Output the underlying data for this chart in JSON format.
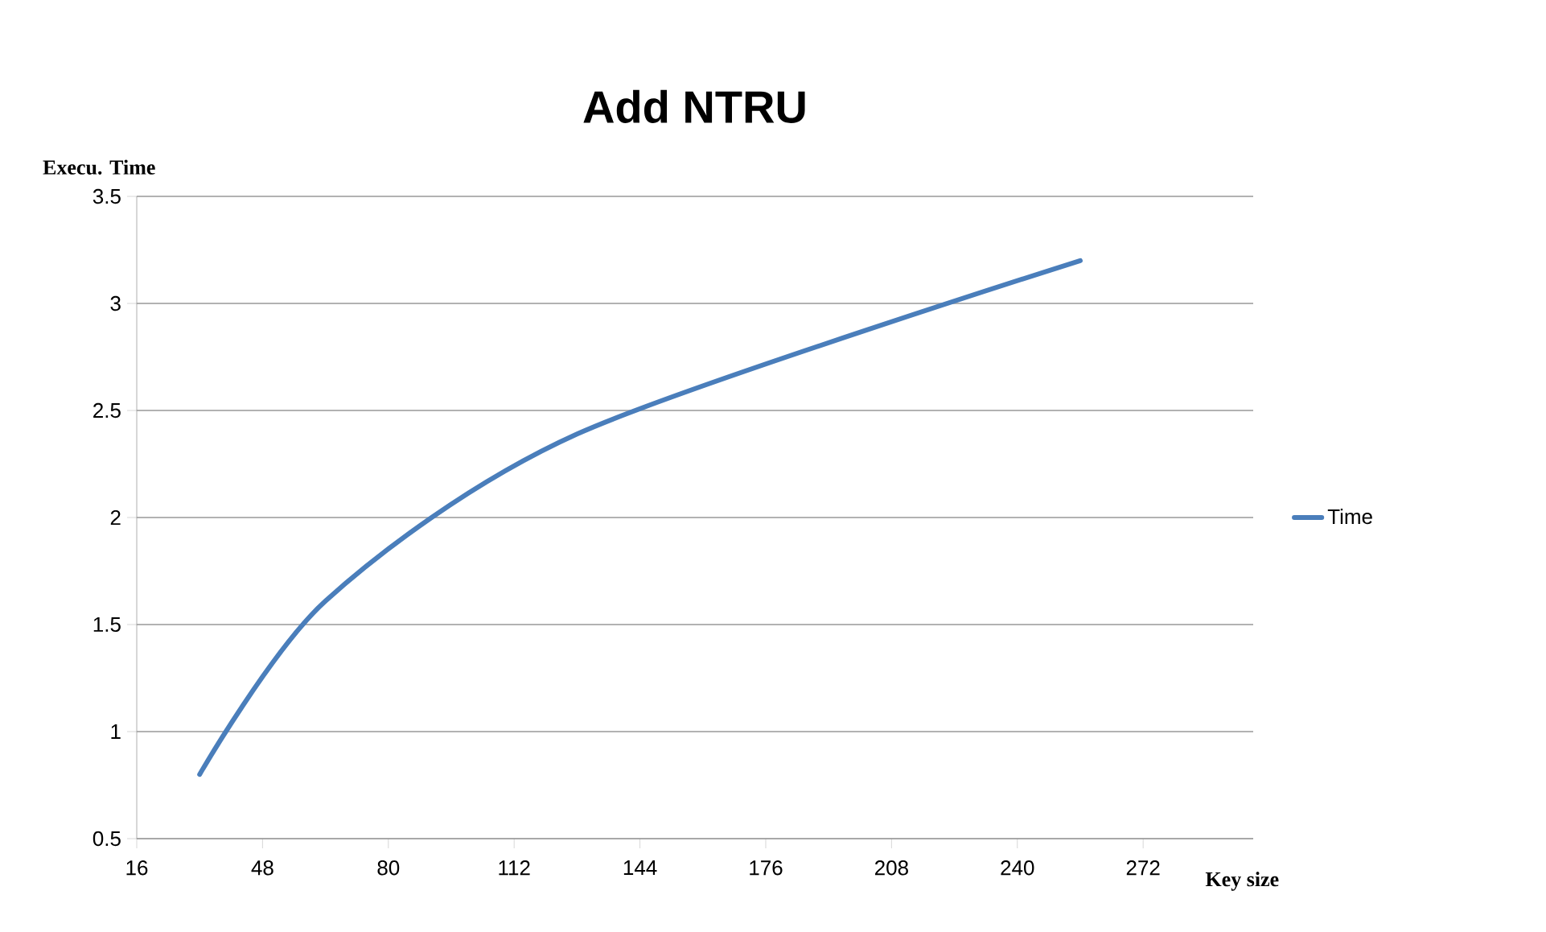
{
  "chart_data": {
    "type": "line",
    "title": "Add NTRU",
    "xlabel": "Key size",
    "ylabel": "Execu. Time",
    "x": [
      32,
      64,
      128,
      256
    ],
    "series": [
      {
        "name": "Time",
        "color": "#4a7ebb",
        "values": [
          0.8,
          1.61,
          2.39,
          3.2
        ]
      }
    ],
    "xlim": [
      16,
      300
    ],
    "ylim": [
      0.5,
      3.5
    ],
    "xticks": [
      16,
      48,
      80,
      112,
      144,
      176,
      208,
      240,
      272
    ],
    "yticks": [
      0.5,
      1,
      1.5,
      2,
      2.5,
      3,
      3.5
    ],
    "grid": "y",
    "legend": "right",
    "line_style": "solid"
  }
}
